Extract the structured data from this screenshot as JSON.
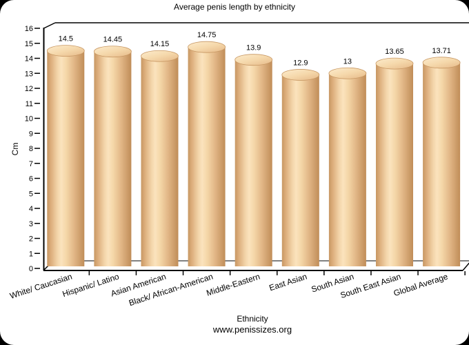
{
  "page": {
    "background_outside": "#000000",
    "canvas_background": "#ffffff"
  },
  "chart_data": {
    "type": "bar",
    "style": "3d-cylinder",
    "title": "Average penis length by ethnicity",
    "xlabel": "Ethnicity",
    "source": "www.penissizes.org",
    "ylabel": "Cm",
    "ylim": [
      0,
      16
    ],
    "ytick_step": 1,
    "grid": false,
    "legend": false,
    "categories": [
      "White/ Caucasian",
      "Hispanic/ Latino",
      "Asian American",
      "Black/ African-American",
      "Middle-Eastern",
      "East Asian",
      "South Asian",
      "South East Asian",
      "Global Average"
    ],
    "values": [
      14.5,
      14.45,
      14.15,
      14.75,
      13.9,
      12.9,
      13,
      13.65,
      13.71
    ],
    "value_labels": [
      "14.5",
      "14.45",
      "14.15",
      "14.75",
      "13.9",
      "12.9",
      "13",
      "13.65",
      "13.71"
    ],
    "colors": {
      "axis": "#000000",
      "text": "#000000",
      "bar_body_gradient": [
        [
          "0%",
          "#c79763"
        ],
        [
          "10%",
          "#dcad7b"
        ],
        [
          "28%",
          "#f3d5aa"
        ],
        [
          "38%",
          "#fbe3bd"
        ],
        [
          "52%",
          "#f4d6a7"
        ],
        [
          "72%",
          "#e2b787"
        ],
        [
          "100%",
          "#c08d58"
        ]
      ],
      "bar_top_gradient": [
        [
          "0%",
          "#fdeccd"
        ],
        [
          "55%",
          "#f5d8ab"
        ],
        [
          "100%",
          "#e8bd8d"
        ]
      ],
      "bar_top_rim": "#c79763"
    }
  }
}
